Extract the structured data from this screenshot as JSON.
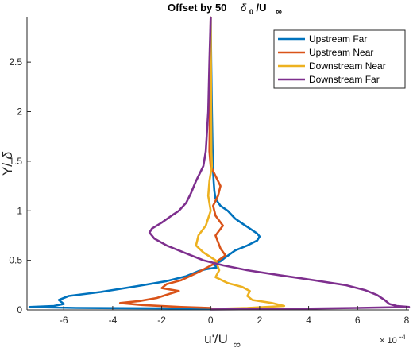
{
  "chart_data": {
    "type": "line",
    "title": {
      "prefix": "Offset by 50",
      "expr_main": "δ",
      "expr_sub": "0",
      "expr_rest": "/U",
      "expr_rest_sub": "∞"
    },
    "xlabel": {
      "main": "u'/U",
      "sub": "∞"
    },
    "ylabel": {
      "main": "Y/",
      "symbol": "δ"
    },
    "x_exponent": {
      "base": "× 10",
      "power": "-4"
    },
    "xlim": [
      -7.5,
      8.1
    ],
    "ylim": [
      0,
      2.95
    ],
    "xticks": [
      -6,
      -4,
      -2,
      0,
      2,
      4,
      6,
      8
    ],
    "yticks": [
      0,
      0.5,
      1,
      1.5,
      2,
      2.5
    ],
    "grid": false,
    "legend_position": "top-right",
    "series": [
      {
        "name": "Upstream Far",
        "color": "#0072BD",
        "points": [
          [
            0.0,
            2.95
          ],
          [
            0.02,
            2.5
          ],
          [
            0.05,
            2.0
          ],
          [
            0.08,
            1.6
          ],
          [
            0.1,
            1.4
          ],
          [
            0.12,
            1.3
          ],
          [
            0.15,
            1.2
          ],
          [
            0.2,
            1.12
          ],
          [
            0.4,
            1.05
          ],
          [
            0.7,
            1.0
          ],
          [
            1.0,
            0.92
          ],
          [
            1.3,
            0.87
          ],
          [
            1.6,
            0.82
          ],
          [
            1.9,
            0.77
          ],
          [
            2.0,
            0.74
          ],
          [
            1.9,
            0.7
          ],
          [
            1.5,
            0.65
          ],
          [
            1.0,
            0.6
          ],
          [
            0.6,
            0.53
          ],
          [
            0.4,
            0.49
          ],
          [
            0.1,
            0.46
          ],
          [
            0.3,
            0.43
          ],
          [
            -0.2,
            0.41
          ],
          [
            -0.5,
            0.39
          ],
          [
            -1.0,
            0.34
          ],
          [
            -1.8,
            0.29
          ],
          [
            -3.0,
            0.24
          ],
          [
            -4.5,
            0.18
          ],
          [
            -5.8,
            0.14
          ],
          [
            -6.2,
            0.1
          ],
          [
            -6.0,
            0.06
          ],
          [
            -6.4,
            0.04
          ],
          [
            -7.4,
            0.03
          ],
          [
            -5.5,
            0.02
          ],
          [
            -2.0,
            0.015
          ],
          [
            0.0,
            0.01
          ]
        ]
      },
      {
        "name": "Upstream Near",
        "color": "#D95319",
        "points": [
          [
            0.0,
            2.95
          ],
          [
            -0.01,
            2.5
          ],
          [
            -0.03,
            2.0
          ],
          [
            -0.05,
            1.6
          ],
          [
            0.0,
            1.45
          ],
          [
            0.2,
            1.35
          ],
          [
            0.4,
            1.25
          ],
          [
            0.3,
            1.15
          ],
          [
            0.1,
            1.05
          ],
          [
            0.2,
            0.95
          ],
          [
            0.5,
            0.85
          ],
          [
            0.2,
            0.75
          ],
          [
            0.4,
            0.62
          ],
          [
            0.6,
            0.55
          ],
          [
            0.1,
            0.46
          ],
          [
            -0.5,
            0.38
          ],
          [
            -1.2,
            0.3
          ],
          [
            -1.8,
            0.26
          ],
          [
            -2.0,
            0.22
          ],
          [
            -1.3,
            0.19
          ],
          [
            -1.7,
            0.16
          ],
          [
            -2.2,
            0.12
          ],
          [
            -2.9,
            0.09
          ],
          [
            -3.7,
            0.07
          ],
          [
            -2.8,
            0.05
          ],
          [
            -1.2,
            0.03
          ],
          [
            0.0,
            0.02
          ]
        ]
      },
      {
        "name": "Downstream Near",
        "color": "#EDB120",
        "points": [
          [
            0.0,
            2.95
          ],
          [
            0.01,
            2.5
          ],
          [
            0.02,
            2.0
          ],
          [
            0.03,
            1.6
          ],
          [
            0.05,
            1.45
          ],
          [
            -0.05,
            1.3
          ],
          [
            -0.1,
            1.15
          ],
          [
            0.0,
            1.0
          ],
          [
            -0.2,
            0.85
          ],
          [
            -0.5,
            0.75
          ],
          [
            -0.6,
            0.65
          ],
          [
            -0.3,
            0.58
          ],
          [
            0.2,
            0.5
          ],
          [
            0.35,
            0.4
          ],
          [
            0.2,
            0.33
          ],
          [
            0.7,
            0.27
          ],
          [
            1.3,
            0.23
          ],
          [
            1.6,
            0.19
          ],
          [
            1.5,
            0.14
          ],
          [
            1.7,
            0.1
          ],
          [
            2.5,
            0.07
          ],
          [
            3.0,
            0.04
          ],
          [
            1.5,
            0.02
          ],
          [
            0.0,
            0.01
          ]
        ]
      },
      {
        "name": "Downstream Far",
        "color": "#7E2F8E",
        "points": [
          [
            0.0,
            2.95
          ],
          [
            -0.05,
            2.5
          ],
          [
            -0.1,
            2.0
          ],
          [
            -0.2,
            1.6
          ],
          [
            -0.3,
            1.45
          ],
          [
            -0.6,
            1.3
          ],
          [
            -0.8,
            1.18
          ],
          [
            -1.0,
            1.08
          ],
          [
            -1.3,
            1.0
          ],
          [
            -1.6,
            0.95
          ],
          [
            -2.0,
            0.88
          ],
          [
            -2.4,
            0.82
          ],
          [
            -2.5,
            0.78
          ],
          [
            -2.3,
            0.72
          ],
          [
            -1.8,
            0.65
          ],
          [
            -1.0,
            0.57
          ],
          [
            -0.3,
            0.5
          ],
          [
            0.5,
            0.45
          ],
          [
            1.5,
            0.4
          ],
          [
            2.8,
            0.35
          ],
          [
            4.2,
            0.3
          ],
          [
            5.5,
            0.25
          ],
          [
            6.3,
            0.2
          ],
          [
            6.8,
            0.15
          ],
          [
            7.1,
            0.1
          ],
          [
            7.3,
            0.06
          ],
          [
            7.6,
            0.04
          ],
          [
            8.1,
            0.03
          ],
          [
            6.0,
            0.02
          ],
          [
            3.0,
            0.01
          ],
          [
            0.0,
            0.005
          ]
        ]
      }
    ]
  }
}
